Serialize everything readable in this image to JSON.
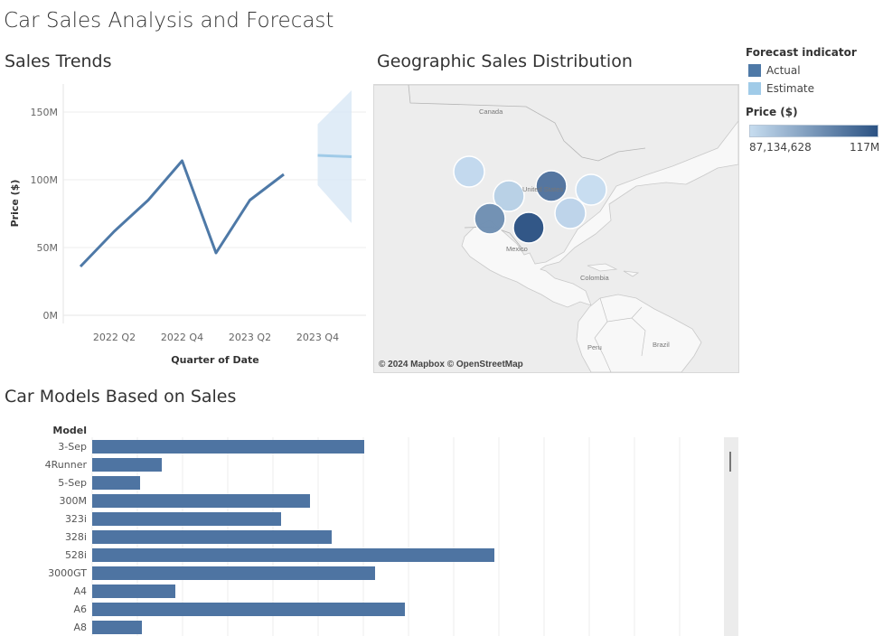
{
  "page": {
    "title": "Car Sales Analysis and Forecast"
  },
  "colors": {
    "actual": "#4e79a7",
    "estimate": "#a0cbe8",
    "band": "#dbe9f6",
    "bar": "#4e74a2",
    "ramp_low": "#c6dcef",
    "ramp_high": "#2b5283"
  },
  "sales_trends": {
    "title": "Sales Trends",
    "chart_data": {
      "type": "line",
      "xlabel": "Quarter of Date",
      "ylabel": "Price ($)",
      "x_tick_labels": [
        "2022 Q2",
        "2022 Q4",
        "2023 Q2",
        "2023 Q4"
      ],
      "y_tick_labels": [
        "0M",
        "50M",
        "100M",
        "150M"
      ],
      "ylim": [
        0,
        165
      ],
      "y_unit": "M",
      "grid": true,
      "series": [
        {
          "name": "Actual",
          "x": [
            "2022 Q1",
            "2022 Q2",
            "2022 Q3",
            "2022 Q4",
            "2023 Q1",
            "2023 Q2",
            "2023 Q3"
          ],
          "values": [
            36,
            62,
            85,
            114,
            46,
            85,
            104
          ]
        },
        {
          "name": "Estimate",
          "x": [
            "2023 Q4",
            "2024 Q1"
          ],
          "values": [
            118,
            117
          ],
          "band_upper": [
            141,
            166
          ],
          "band_lower": [
            96,
            68
          ]
        }
      ]
    }
  },
  "geo": {
    "title": "Geographic Sales Distribution",
    "attribution": "© 2024 Mapbox © OpenStreetMap",
    "labels": {
      "canada": "Canada",
      "united_states": "United States",
      "mexico": "Mexico",
      "colombia": "Colombia",
      "peru": "Peru",
      "brazil": "Brazil"
    },
    "chart_data": {
      "type": "scatter",
      "color_measure": "Price ($)",
      "points": [
        {
          "region": "west",
          "price": 88
        },
        {
          "region": "mountain",
          "price": 90
        },
        {
          "region": "southwest",
          "price": 104
        },
        {
          "region": "south-central",
          "price": 117
        },
        {
          "region": "midwest",
          "price": 110
        },
        {
          "region": "southeast",
          "price": 89
        },
        {
          "region": "northeast",
          "price": 87.1
        }
      ]
    }
  },
  "legend": {
    "forecast_title": "Forecast indicator",
    "actual": "Actual",
    "estimate": "Estimate",
    "price_title": "Price ($)",
    "price_min": "87,134,628",
    "price_max": "117M"
  },
  "models": {
    "title": "Car Models Based on Sales",
    "chart_data": {
      "type": "bar",
      "orientation": "horizontal",
      "category_header": "Model",
      "categories": [
        "3-Sep",
        "4Runner",
        "5-Sep",
        "300M",
        "323i",
        "328i",
        "528i",
        "3000GT",
        "A4",
        "A6",
        "A8"
      ],
      "values": [
        301,
        77,
        53,
        241,
        209,
        265,
        445,
        313,
        92,
        346,
        55
      ],
      "xlim": [
        0,
        700
      ],
      "grid_step": 50
    }
  }
}
